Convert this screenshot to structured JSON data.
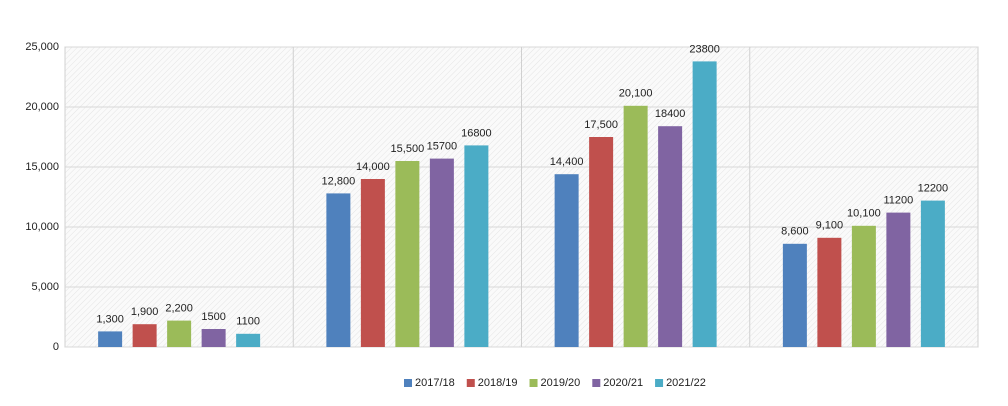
{
  "chart_data": {
    "type": "bar",
    "categories": [
      null,
      null,
      null,
      null
    ],
    "series": [
      {
        "name": "2017/18",
        "color": "#4f81bd",
        "values": [
          1300,
          12800,
          14400,
          8600
        ],
        "value_labels": [
          "1,300",
          "12,800",
          "14,400",
          "8,600"
        ]
      },
      {
        "name": "2018/19",
        "color": "#c0504d",
        "values": [
          1900,
          14000,
          17500,
          9100
        ],
        "value_labels": [
          "1,900",
          "14,000",
          "17,500",
          "9,100"
        ]
      },
      {
        "name": "2019/20",
        "color": "#9bbb59",
        "values": [
          2200,
          15500,
          20100,
          10100
        ],
        "value_labels": [
          "2,200",
          "15,500",
          "20,100",
          "10,100"
        ]
      },
      {
        "name": "2020/21",
        "color": "#8064a2",
        "values": [
          1500,
          15700,
          18400,
          11200
        ]
      },
      {
        "name": "2021/22",
        "color": "#4bacc6",
        "values": [
          1100,
          16800,
          23800,
          12200
        ]
      }
    ],
    "ylim": [
      0,
      25000
    ],
    "yticks": [
      0,
      {
        "value": 5000,
        "label": "5,000"
      },
      {
        "value": 10000,
        "label": "10,000"
      },
      {
        "value": 15000,
        "label": "15,000"
      },
      {
        "value": 20000,
        "label": "20,000"
      },
      {
        "value": 25000,
        "label": "25,000"
      }
    ],
    "grid": true,
    "legend": "bottom"
  }
}
